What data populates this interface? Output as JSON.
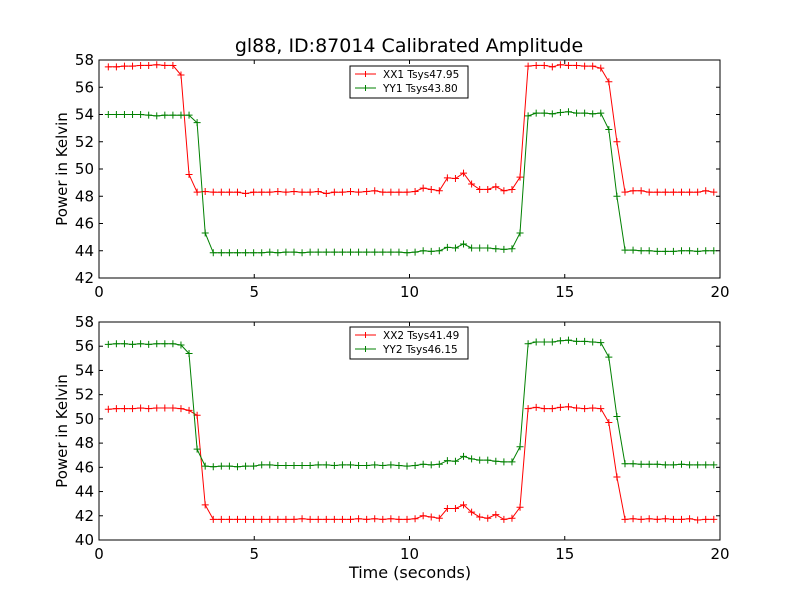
{
  "figure": {
    "title": "gl88, ID:87014 Calibrated Amplitude",
    "xlabel": "Time (seconds)"
  },
  "chart_data": [
    {
      "type": "line",
      "title": "gl88, ID:87014 Calibrated Amplitude",
      "xlabel": "",
      "ylabel": "Power in Kelvin",
      "xlim": [
        0,
        20
      ],
      "ylim": [
        42,
        58
      ],
      "xticks": [
        0,
        5,
        10,
        15,
        20
      ],
      "yticks": [
        42,
        44,
        46,
        48,
        50,
        52,
        54,
        56,
        58
      ],
      "grid": false,
      "legend_position": "top-center",
      "x": [
        0.3,
        0.56,
        0.82,
        1.08,
        1.34,
        1.6,
        1.86,
        2.12,
        2.38,
        2.64,
        2.9,
        3.16,
        3.42,
        3.68,
        3.94,
        4.2,
        4.46,
        4.72,
        4.98,
        5.24,
        5.5,
        5.76,
        6.02,
        6.28,
        6.54,
        6.8,
        7.06,
        7.32,
        7.58,
        7.84,
        8.1,
        8.36,
        8.62,
        8.88,
        9.14,
        9.4,
        9.66,
        9.92,
        10.18,
        10.44,
        10.7,
        10.96,
        11.22,
        11.48,
        11.74,
        12.0,
        12.26,
        12.52,
        12.78,
        13.04,
        13.3,
        13.56,
        13.82,
        14.08,
        14.34,
        14.6,
        14.86,
        15.12,
        15.38,
        15.64,
        15.9,
        16.16,
        16.42,
        16.68,
        16.94,
        17.2,
        17.46,
        17.72,
        17.98,
        18.24,
        18.5,
        18.76,
        19.02,
        19.28,
        19.54,
        19.8
      ],
      "series": [
        {
          "name": "XX1 Tsys47.95",
          "color": "#ff0000",
          "values": [
            57.5,
            57.5,
            57.55,
            57.55,
            57.6,
            57.6,
            57.65,
            57.6,
            57.6,
            56.9,
            49.6,
            48.3,
            48.35,
            48.3,
            48.3,
            48.3,
            48.3,
            48.2,
            48.3,
            48.3,
            48.3,
            48.35,
            48.3,
            48.35,
            48.3,
            48.3,
            48.35,
            48.2,
            48.3,
            48.3,
            48.35,
            48.3,
            48.35,
            48.4,
            48.3,
            48.3,
            48.3,
            48.3,
            48.35,
            48.6,
            48.5,
            48.4,
            49.35,
            49.3,
            49.7,
            48.9,
            48.5,
            48.5,
            48.7,
            48.4,
            48.5,
            49.4,
            57.55,
            57.6,
            57.6,
            57.5,
            57.65,
            57.6,
            57.6,
            57.55,
            57.55,
            57.4,
            56.4,
            52.0,
            48.3,
            48.4,
            48.4,
            48.3,
            48.3,
            48.3,
            48.3,
            48.3,
            48.3,
            48.3,
            48.4,
            48.3
          ]
        },
        {
          "name": "YY1 Tsys43.80",
          "color": "#008000",
          "values": [
            54.0,
            54.0,
            54.0,
            54.0,
            54.0,
            53.95,
            53.9,
            53.95,
            53.95,
            53.95,
            53.95,
            53.4,
            45.3,
            43.85,
            43.85,
            43.85,
            43.85,
            43.85,
            43.85,
            43.85,
            43.9,
            43.85,
            43.9,
            43.9,
            43.85,
            43.9,
            43.9,
            43.9,
            43.9,
            43.9,
            43.9,
            43.9,
            43.9,
            43.9,
            43.9,
            43.9,
            43.9,
            43.85,
            43.9,
            44.0,
            43.95,
            44.0,
            44.25,
            44.2,
            44.5,
            44.2,
            44.2,
            44.2,
            44.15,
            44.1,
            44.15,
            45.3,
            53.9,
            54.1,
            54.1,
            54.05,
            54.15,
            54.2,
            54.1,
            54.1,
            54.05,
            54.1,
            52.9,
            48.0,
            44.05,
            44.05,
            44.0,
            44.0,
            43.95,
            43.95,
            43.95,
            44.0,
            44.0,
            43.95,
            44.0,
            44.0
          ]
        }
      ]
    },
    {
      "type": "line",
      "title": "",
      "xlabel": "Time (seconds)",
      "ylabel": "Power in Kelvin",
      "xlim": [
        0,
        20
      ],
      "ylim": [
        40,
        58
      ],
      "xticks": [
        0,
        5,
        10,
        15,
        20
      ],
      "yticks": [
        40,
        42,
        44,
        46,
        48,
        50,
        52,
        54,
        56,
        58
      ],
      "grid": false,
      "legend_position": "top-center",
      "x": [
        0.3,
        0.56,
        0.82,
        1.08,
        1.34,
        1.6,
        1.86,
        2.12,
        2.38,
        2.64,
        2.9,
        3.16,
        3.42,
        3.68,
        3.94,
        4.2,
        4.46,
        4.72,
        4.98,
        5.24,
        5.5,
        5.76,
        6.02,
        6.28,
        6.54,
        6.8,
        7.06,
        7.32,
        7.58,
        7.84,
        8.1,
        8.36,
        8.62,
        8.88,
        9.14,
        9.4,
        9.66,
        9.92,
        10.18,
        10.44,
        10.7,
        10.96,
        11.22,
        11.48,
        11.74,
        12.0,
        12.26,
        12.52,
        12.78,
        13.04,
        13.3,
        13.56,
        13.82,
        14.08,
        14.34,
        14.6,
        14.86,
        15.12,
        15.38,
        15.64,
        15.9,
        16.16,
        16.42,
        16.68,
        16.94,
        17.2,
        17.46,
        17.72,
        17.98,
        18.24,
        18.5,
        18.76,
        19.02,
        19.28,
        19.54,
        19.8
      ],
      "series": [
        {
          "name": "XX2 Tsys41.49",
          "color": "#ff0000",
          "values": [
            50.8,
            50.85,
            50.85,
            50.85,
            50.9,
            50.85,
            50.9,
            50.9,
            50.9,
            50.85,
            50.7,
            50.3,
            42.9,
            41.7,
            41.7,
            41.7,
            41.7,
            41.7,
            41.7,
            41.7,
            41.7,
            41.7,
            41.7,
            41.7,
            41.75,
            41.7,
            41.7,
            41.7,
            41.7,
            41.7,
            41.7,
            41.75,
            41.7,
            41.75,
            41.7,
            41.75,
            41.7,
            41.7,
            41.75,
            42.0,
            41.9,
            41.8,
            42.6,
            42.6,
            42.9,
            42.3,
            41.9,
            41.8,
            42.1,
            41.7,
            41.8,
            42.7,
            50.85,
            50.95,
            50.85,
            50.85,
            50.95,
            51.0,
            50.9,
            50.85,
            50.9,
            50.85,
            49.7,
            45.2,
            41.7,
            41.75,
            41.7,
            41.75,
            41.7,
            41.75,
            41.7,
            41.7,
            41.75,
            41.65,
            41.7,
            41.7
          ]
        },
        {
          "name": "YY2 Tsys46.15",
          "color": "#008000",
          "values": [
            56.15,
            56.2,
            56.2,
            56.15,
            56.2,
            56.15,
            56.2,
            56.2,
            56.2,
            56.1,
            55.4,
            47.5,
            46.1,
            46.05,
            46.1,
            46.1,
            46.05,
            46.1,
            46.1,
            46.2,
            46.2,
            46.15,
            46.15,
            46.15,
            46.15,
            46.15,
            46.2,
            46.2,
            46.15,
            46.2,
            46.2,
            46.15,
            46.15,
            46.2,
            46.15,
            46.2,
            46.15,
            46.1,
            46.15,
            46.25,
            46.2,
            46.25,
            46.55,
            46.5,
            46.9,
            46.7,
            46.6,
            46.6,
            46.5,
            46.45,
            46.45,
            47.7,
            56.2,
            56.35,
            56.35,
            56.35,
            56.45,
            56.5,
            56.4,
            56.4,
            56.35,
            56.3,
            55.1,
            50.2,
            46.3,
            46.3,
            46.25,
            46.25,
            46.25,
            46.2,
            46.2,
            46.25,
            46.2,
            46.2,
            46.2,
            46.2
          ]
        }
      ]
    }
  ]
}
